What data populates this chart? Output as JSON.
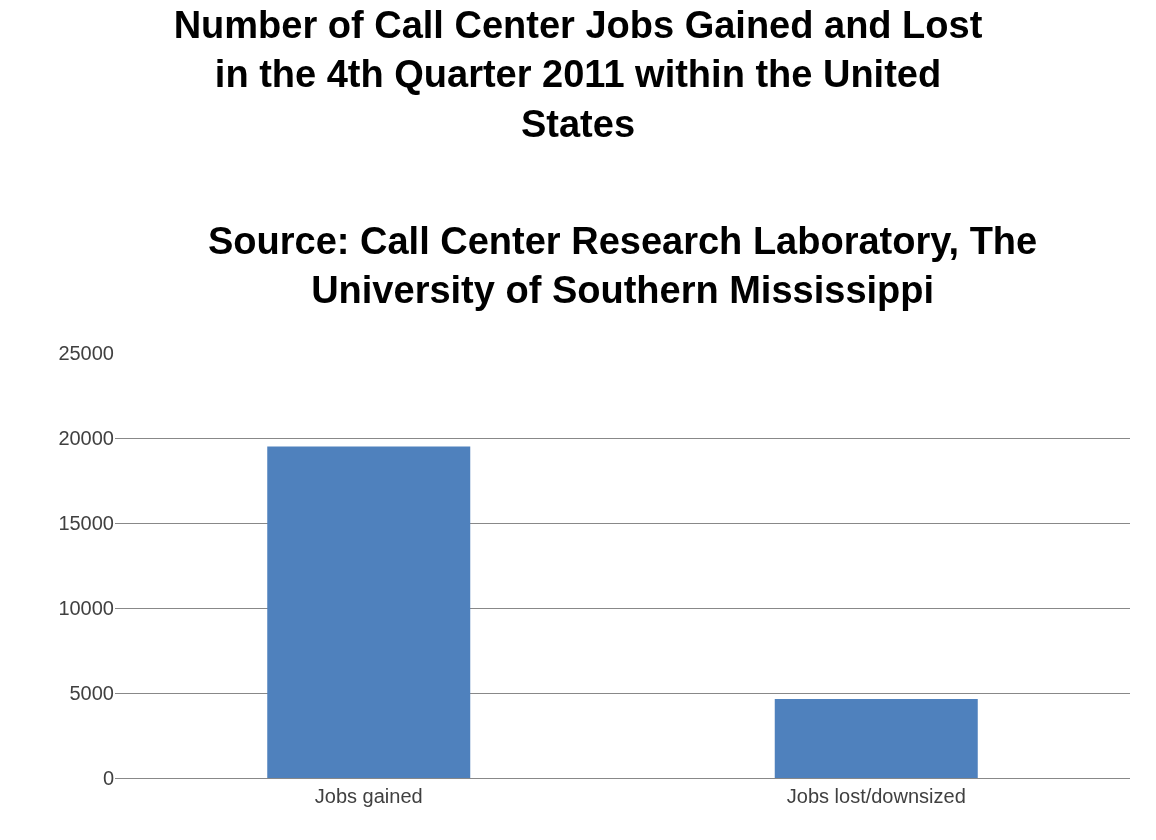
{
  "chart_data": {
    "type": "bar",
    "title": "Number of Call Center Jobs Gained and Lost in the 4th Quarter 2011 within the United States",
    "annotations": [
      "Source: Call Center Research Laboratory, The University of Southern Mississippi"
    ],
    "categories": [
      "Jobs gained",
      "Jobs lost/downsized"
    ],
    "values": [
      19500,
      4650
    ],
    "color": "#4f81bd",
    "ylim": [
      0,
      25000
    ],
    "yticks": [
      0,
      5000,
      10000,
      15000,
      20000,
      25000
    ],
    "grid": "y"
  }
}
